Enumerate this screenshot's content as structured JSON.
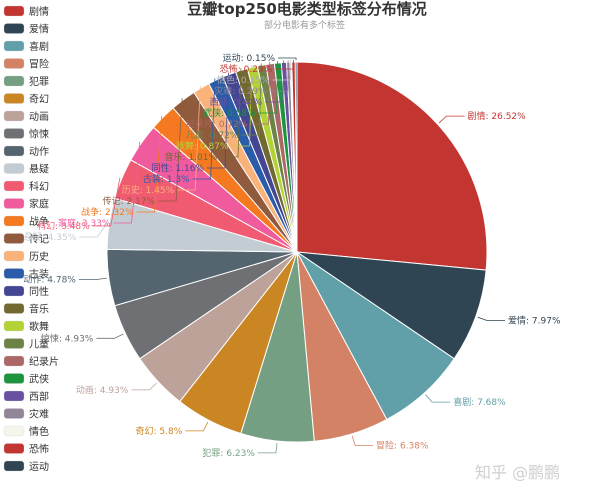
{
  "chart_data": {
    "type": "pie",
    "title": "豆瓣top250电影类型标签分布情况",
    "subtitle": "部分电影有多个标签",
    "legend_position": "left",
    "slices": [
      {
        "name": "剧情",
        "value": 26.52,
        "label": "剧情: 26.52%",
        "color": "#c23531"
      },
      {
        "name": "爱情",
        "value": 7.97,
        "label": "爱情: 7.97%",
        "color": "#2f4554"
      },
      {
        "name": "喜剧",
        "value": 7.68,
        "label": "喜剧: 7.68%",
        "color": "#61a0a8"
      },
      {
        "name": "冒险",
        "value": 6.38,
        "label": "冒险: 6.38%",
        "color": "#d48265"
      },
      {
        "name": "犯罪",
        "value": 6.23,
        "label": "犯罪: 6.23%",
        "color": "#749f83"
      },
      {
        "name": "奇幻",
        "value": 5.8,
        "label": "奇幻: 5.8%",
        "color": "#ca8622"
      },
      {
        "name": "动画",
        "value": 4.93,
        "label": "动画: 4.93%",
        "color": "#bda29a"
      },
      {
        "name": "惊悚",
        "value": 4.93,
        "label": "惊悚: 4.93%",
        "color": "#6e7074"
      },
      {
        "name": "动作",
        "value": 4.78,
        "label": "动作: 4.78%",
        "color": "#546570"
      },
      {
        "name": "悬疑",
        "value": 4.35,
        "label": "悬疑: 4.35%",
        "color": "#c4ccd3"
      },
      {
        "name": "科幻",
        "value": 3.48,
        "label": "科幻: 3.48%",
        "color": "#f05b72"
      },
      {
        "name": "家庭",
        "value": 3.33,
        "label": "家庭: 3.33%",
        "color": "#ef5b9c"
      },
      {
        "name": "战争",
        "value": 2.32,
        "label": "战争: 2.32%",
        "color": "#f47920"
      },
      {
        "name": "传记",
        "value": 2.17,
        "label": "传记: 2.17%",
        "color": "#905a3d"
      },
      {
        "name": "历史",
        "value": 1.45,
        "label": "历史: 1.45%",
        "color": "#fab27b"
      },
      {
        "name": "古装",
        "value": 1.3,
        "label": "古装: 1.3%",
        "color": "#2a5caa"
      },
      {
        "name": "同性",
        "value": 1.16,
        "label": "同性: 1.16%",
        "color": "#444693"
      },
      {
        "name": "音乐",
        "value": 1.01,
        "label": "音乐: 1.01%",
        "color": "#726930"
      },
      {
        "name": "歌舞",
        "value": 0.87,
        "label": "歌舞: 0.87%",
        "color": "#b2d235"
      },
      {
        "name": "儿童",
        "value": 0.72,
        "label": "儿童: 0.72%",
        "color": "#6d8346"
      },
      {
        "name": "纪录片",
        "value": 0.72,
        "label": "纪录片: 0.72%",
        "color": "#ac6767"
      },
      {
        "name": "武侠",
        "value": 0.58,
        "label": "武侠: 0.58%",
        "color": "#1d953f"
      },
      {
        "name": "西部",
        "value": 0.44,
        "label": "西部: 0.44%",
        "color": "#6950a1"
      },
      {
        "name": "灾难",
        "value": 0.29,
        "label": "灾难: 0.29%",
        "color": "#918597"
      },
      {
        "name": "情色",
        "value": 0.15,
        "label": "情色: 0.15%",
        "color": "#f6f5ec"
      },
      {
        "name": "恐怖",
        "value": 0.29,
        "label": "恐怖: 0.29%",
        "color": "#c23531"
      },
      {
        "name": "运动",
        "value": 0.15,
        "label": "运动: 0.15%",
        "color": "#2f4554"
      }
    ]
  },
  "watermark": "知乎 @鹏鹏"
}
